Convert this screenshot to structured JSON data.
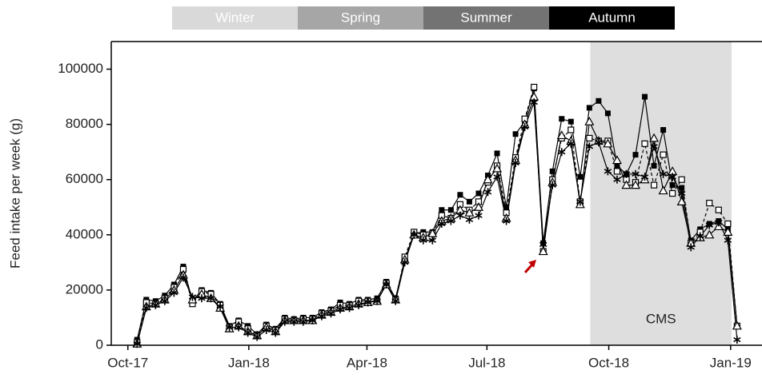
{
  "chart_data": {
    "type": "line",
    "seasons": [
      {
        "label": "Winter",
        "color": "#d9d9d9"
      },
      {
        "label": "Spring",
        "color": "#a6a6a6"
      },
      {
        "label": "Summer",
        "color": "#737373"
      },
      {
        "label": "Autumn",
        "color": "#000000"
      }
    ],
    "y_label": "Feed intake per week (g)",
    "shade": {
      "x": [
        50.1,
        65.4
      ],
      "label": "CMS",
      "color": "#dedede"
    },
    "x": [
      1,
      2,
      3,
      4,
      5,
      6,
      7,
      8,
      9,
      10,
      11,
      12,
      13,
      14,
      15,
      16,
      17,
      18,
      19,
      20,
      21,
      22,
      23,
      24,
      25,
      26,
      27,
      28,
      29,
      30,
      31,
      32,
      33,
      34,
      35,
      36,
      37,
      38,
      39,
      40,
      41,
      42,
      43,
      44,
      45,
      46,
      47,
      48,
      49,
      50,
      51,
      52,
      53,
      54,
      55,
      56,
      57,
      58,
      59,
      60,
      61,
      62,
      63,
      64,
      65,
      66
    ],
    "series": [
      {
        "color": "#000000",
        "marker": "square-filled",
        "dash": false,
        "values": [
          2000,
          16500,
          16000,
          18000,
          22000,
          28500,
          16000,
          20000,
          19000,
          15000,
          7000,
          9000,
          7000,
          4000,
          7500,
          6000,
          10000,
          9500,
          10000,
          10000,
          12000,
          13000,
          15500,
          15000,
          16500,
          16500,
          17000,
          23000,
          17000,
          31000,
          40500,
          41000,
          41000,
          49000,
          49000,
          54500,
          52000,
          55000,
          61500,
          69500,
          50000,
          76500,
          81000,
          93000,
          37000,
          63000,
          82000,
          81000,
          61000,
          86000,
          88500,
          84000,
          65000,
          62000,
          69000,
          90000,
          65000,
          78000,
          58000,
          57000,
          38000,
          42000,
          44000,
          45000,
          42000,
          7000
        ]
      },
      {
        "color": "#000000",
        "marker": "square-open",
        "dash": true,
        "values": [
          1000,
          15500,
          15000,
          17000,
          21000,
          27500,
          15000,
          19500,
          18500,
          14500,
          6500,
          8500,
          6000,
          3500,
          7000,
          5500,
          9500,
          9000,
          9500,
          9500,
          11500,
          12500,
          14500,
          14500,
          16000,
          16000,
          16000,
          22500,
          16500,
          32000,
          41000,
          40000,
          40500,
          47000,
          46000,
          51000,
          49000,
          52000,
          59000,
          65000,
          48000,
          68000,
          82000,
          93500,
          34000,
          60000,
          75000,
          78000,
          52000,
          75000,
          74000,
          74000,
          63000,
          60000,
          59000,
          73000,
          58000,
          69000,
          55000,
          60000,
          37000,
          41000,
          51500,
          49000,
          44000,
          7000
        ]
      },
      {
        "color": "#000000",
        "marker": "triangle-open",
        "dash": false,
        "values": [
          500,
          14000,
          15000,
          16500,
          20000,
          25500,
          16500,
          18500,
          17000,
          13500,
          6000,
          7000,
          5000,
          3500,
          6500,
          5000,
          9000,
          9000,
          9000,
          9000,
          11000,
          12000,
          13500,
          14000,
          15000,
          15500,
          16000,
          22000,
          16500,
          31000,
          40000,
          39000,
          40500,
          45000,
          46000,
          49000,
          48000,
          50000,
          60000,
          64000,
          46000,
          67000,
          80000,
          90000,
          34000,
          59000,
          76000,
          74000,
          51000,
          81000,
          74000,
          73000,
          67000,
          58000,
          58000,
          60000,
          75000,
          56000,
          63000,
          52000,
          37000,
          39000,
          40000,
          43000,
          41000,
          7000
        ]
      },
      {
        "color": "#000000",
        "marker": "asterisk",
        "dash": false,
        "values": [
          500,
          13500,
          14500,
          16000,
          19000,
          24500,
          17500,
          17000,
          17000,
          14000,
          6500,
          6500,
          4500,
          3000,
          5500,
          4500,
          8500,
          8500,
          8500,
          9000,
          10500,
          11500,
          13000,
          13500,
          14500,
          15500,
          16000,
          22000,
          16000,
          30000,
          40000,
          38000,
          38000,
          44000,
          45000,
          47000,
          45500,
          47000,
          55500,
          61000,
          45000,
          66000,
          79000,
          88000,
          36500,
          58000,
          70000,
          73000,
          52000,
          72000,
          73500,
          63000,
          60000,
          62000,
          62000,
          61000,
          72000,
          62000,
          61000,
          55000,
          35500,
          39500,
          43500,
          44500,
          38000,
          2000
        ]
      }
    ],
    "xlim": [
      -1.8,
      68.7
    ],
    "xticks": [
      {
        "value": 0,
        "label": "Oct-17"
      },
      {
        "value": 13.1,
        "label": "Jan-18"
      },
      {
        "value": 25.9,
        "label": "Apr-18"
      },
      {
        "value": 38.9,
        "label": "Jul-18"
      },
      {
        "value": 52.1,
        "label": "Oct-18"
      },
      {
        "value": 65.3,
        "label": "Jan-19"
      }
    ],
    "ylim": [
      0,
      110000
    ],
    "yticks": [
      0,
      20000,
      40000,
      60000,
      80000,
      100000
    ]
  }
}
